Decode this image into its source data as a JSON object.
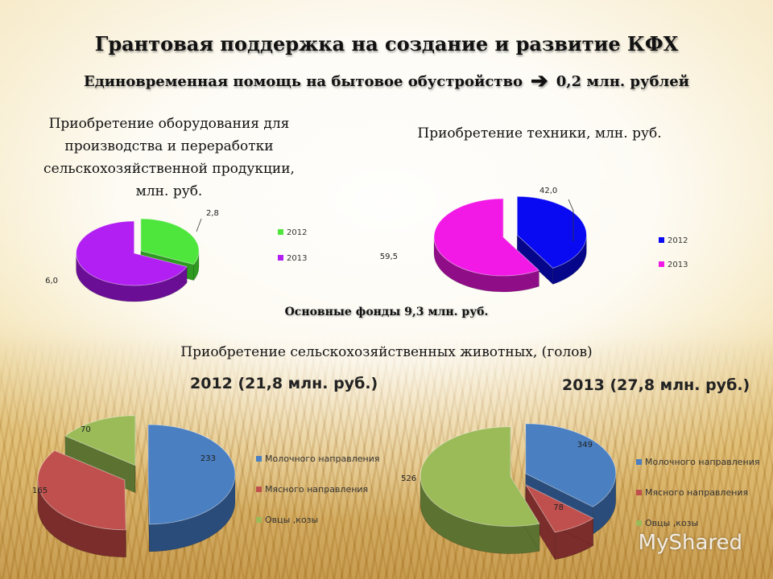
{
  "title": "Грантовая  поддержка на  создание  и развитие  КФХ",
  "subtitle_left": "Единовременная помощь на бытовое обустройство",
  "subtitle_arrow": "➔",
  "subtitle_right": "0,2 млн. рублей",
  "fonds": "Основные фонды 9,3 млн. руб.",
  "animals_title": "Приобретение сельскохозяйственных животных, (голов)",
  "watermark": "MyShared",
  "chart_data": [
    {
      "type": "pie",
      "title_lines": [
        "Приобретение оборудования для",
        "производства и переработки",
        "сельскохозяйственной продукции,",
        "млн. руб."
      ],
      "slices": [
        {
          "label": "2012",
          "value": 2.8,
          "value_label": "2,8",
          "color": "#4ee63c",
          "side": "#2f9a22"
        },
        {
          "label": "2013",
          "value": 6.0,
          "value_label": "6,0",
          "color": "#b21ff2",
          "side": "#6a0f95"
        }
      ],
      "legend": "right"
    },
    {
      "type": "pie",
      "title_lines": [
        "Приобретение техники, млн. руб."
      ],
      "slices": [
        {
          "label": "2012",
          "value": 42.0,
          "value_label": "42,0",
          "color": "#0a0af2",
          "side": "#06068a"
        },
        {
          "label": "2013",
          "value": 59.5,
          "value_label": "59,5",
          "color": "#f219e6",
          "side": "#8f0e88"
        }
      ],
      "legend": "right"
    },
    {
      "type": "pie",
      "heading": "2012 (21,8 млн. руб.)",
      "slices": [
        {
          "label": "Молочного направления",
          "value": 233,
          "value_label": "233",
          "color": "#4a7fc1",
          "side": "#2a4c7a"
        },
        {
          "label": "Мясного направления",
          "value": 165,
          "value_label": "165",
          "color": "#c0504d",
          "side": "#7a2d2b"
        },
        {
          "label": "Овцы ,козы",
          "value": 70,
          "value_label": "70",
          "color": "#9bbb59",
          "side": "#5b7231"
        }
      ],
      "legend": "right"
    },
    {
      "type": "pie",
      "heading": "2013 (27,8 млн. руб.)",
      "slices": [
        {
          "label": "Молочного направления",
          "value": 349,
          "value_label": "349",
          "color": "#4a7fc1",
          "side": "#2a4c7a"
        },
        {
          "label": "Мясного направления",
          "value": 78,
          "value_label": "78",
          "color": "#c0504d",
          "side": "#7a2d2b"
        },
        {
          "label": "Овцы ,козы",
          "value": 526,
          "value_label": "526",
          "color": "#9bbb59",
          "side": "#5b7231"
        }
      ],
      "legend": "right"
    }
  ]
}
